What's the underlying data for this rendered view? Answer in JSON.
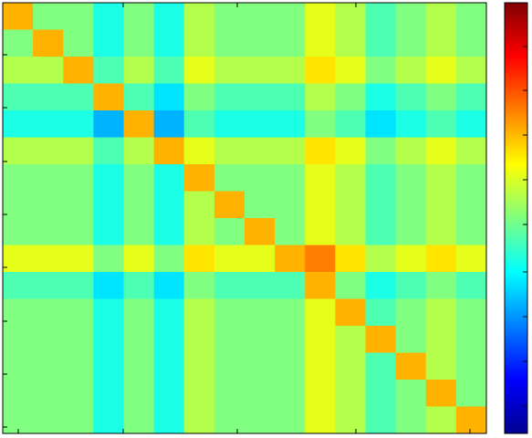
{
  "chart_data": {
    "type": "heatmap",
    "colormap": "jet",
    "clim": [
      0,
      1
    ],
    "values": [
      [
        0.7,
        0.5,
        0.5,
        0.4,
        0.5,
        0.4,
        0.55,
        0.5,
        0.5,
        0.5,
        0.6,
        0.55,
        0.45,
        0.5,
        0.55,
        0.5
      ],
      [
        0.5,
        0.7,
        0.5,
        0.4,
        0.5,
        0.4,
        0.55,
        0.5,
        0.5,
        0.5,
        0.6,
        0.55,
        0.45,
        0.5,
        0.55,
        0.5
      ],
      [
        0.55,
        0.55,
        0.7,
        0.45,
        0.55,
        0.45,
        0.6,
        0.55,
        0.55,
        0.55,
        0.65,
        0.6,
        0.5,
        0.55,
        0.6,
        0.55
      ],
      [
        0.45,
        0.45,
        0.45,
        0.7,
        0.45,
        0.35,
        0.5,
        0.45,
        0.45,
        0.45,
        0.55,
        0.5,
        0.4,
        0.45,
        0.5,
        0.45
      ],
      [
        0.4,
        0.4,
        0.4,
        0.3,
        0.7,
        0.3,
        0.45,
        0.4,
        0.4,
        0.4,
        0.5,
        0.45,
        0.35,
        0.4,
        0.45,
        0.4
      ],
      [
        0.55,
        0.55,
        0.55,
        0.45,
        0.55,
        0.7,
        0.6,
        0.55,
        0.55,
        0.55,
        0.65,
        0.6,
        0.5,
        0.55,
        0.6,
        0.55
      ],
      [
        0.5,
        0.5,
        0.5,
        0.4,
        0.5,
        0.4,
        0.7,
        0.5,
        0.5,
        0.5,
        0.6,
        0.55,
        0.45,
        0.5,
        0.55,
        0.5
      ],
      [
        0.5,
        0.5,
        0.5,
        0.4,
        0.5,
        0.4,
        0.55,
        0.7,
        0.5,
        0.5,
        0.6,
        0.55,
        0.45,
        0.5,
        0.55,
        0.5
      ],
      [
        0.5,
        0.5,
        0.5,
        0.4,
        0.5,
        0.4,
        0.55,
        0.5,
        0.7,
        0.5,
        0.6,
        0.55,
        0.45,
        0.5,
        0.55,
        0.5
      ],
      [
        0.6,
        0.6,
        0.6,
        0.5,
        0.6,
        0.5,
        0.65,
        0.6,
        0.6,
        0.7,
        0.75,
        0.65,
        0.55,
        0.6,
        0.65,
        0.6
      ],
      [
        0.45,
        0.45,
        0.45,
        0.35,
        0.45,
        0.35,
        0.5,
        0.45,
        0.45,
        0.45,
        0.7,
        0.5,
        0.4,
        0.45,
        0.5,
        0.45
      ],
      [
        0.5,
        0.5,
        0.5,
        0.4,
        0.5,
        0.4,
        0.55,
        0.5,
        0.5,
        0.5,
        0.6,
        0.7,
        0.45,
        0.5,
        0.55,
        0.5
      ],
      [
        0.5,
        0.5,
        0.5,
        0.4,
        0.5,
        0.4,
        0.55,
        0.5,
        0.5,
        0.5,
        0.6,
        0.55,
        0.7,
        0.5,
        0.55,
        0.5
      ],
      [
        0.5,
        0.5,
        0.5,
        0.4,
        0.5,
        0.4,
        0.55,
        0.5,
        0.5,
        0.5,
        0.6,
        0.55,
        0.45,
        0.7,
        0.55,
        0.5
      ],
      [
        0.5,
        0.5,
        0.5,
        0.4,
        0.5,
        0.4,
        0.55,
        0.5,
        0.5,
        0.5,
        0.6,
        0.55,
        0.45,
        0.5,
        0.7,
        0.5
      ],
      [
        0.5,
        0.5,
        0.5,
        0.4,
        0.5,
        0.4,
        0.55,
        0.5,
        0.5,
        0.5,
        0.6,
        0.55,
        0.45,
        0.5,
        0.55,
        0.7
      ]
    ]
  }
}
